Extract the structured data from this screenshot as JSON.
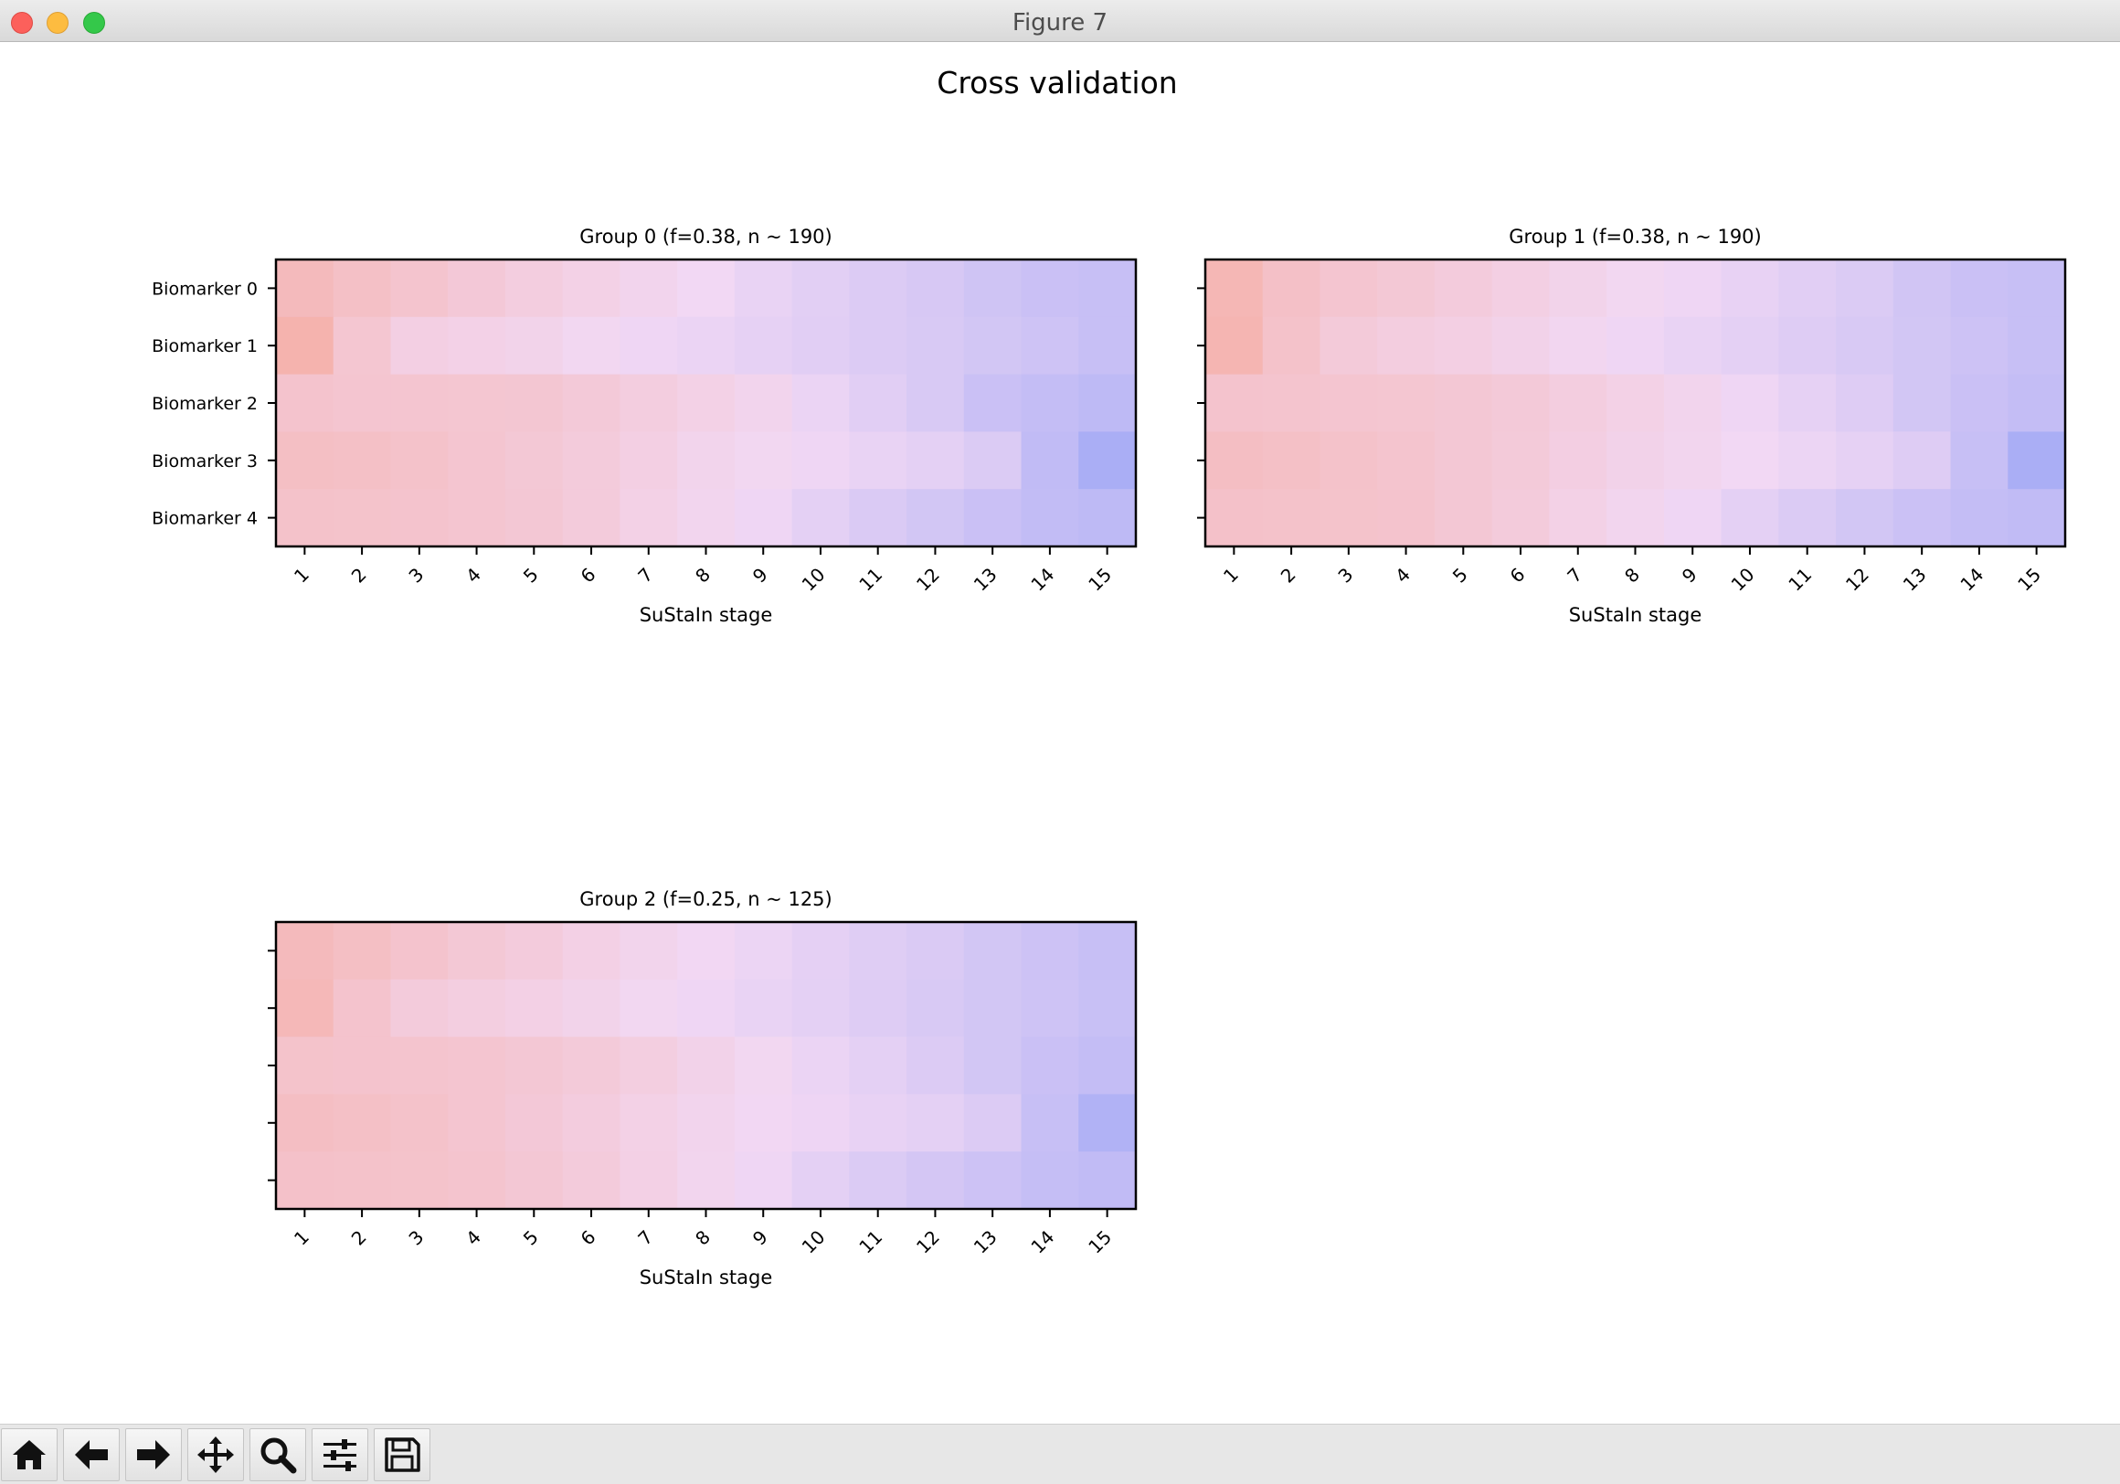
{
  "window": {
    "title": "Figure 7"
  },
  "figure": {
    "suptitle": "Cross validation"
  },
  "toolbar": {
    "buttons": [
      {
        "name": "home",
        "icon": "home-icon"
      },
      {
        "name": "back",
        "icon": "arrow-left-icon"
      },
      {
        "name": "forward",
        "icon": "arrow-right-icon"
      },
      {
        "name": "pan",
        "icon": "move-arrows-icon"
      },
      {
        "name": "zoom",
        "icon": "magnifier-icon"
      },
      {
        "name": "configure-subplots",
        "icon": "sliders-icon"
      },
      {
        "name": "save",
        "icon": "floppy-disk-icon"
      }
    ]
  },
  "colors": {
    "low": "#f5b3ae",
    "mid": "#f2d8f4",
    "high": "#aaaef5",
    "titlebar": "#e3e3e3",
    "toolbar": "#e7e7e7"
  },
  "chart_data": [
    {
      "type": "heatmap",
      "title": "Group 0 (f=0.38, n ~ 190)",
      "xlabel": "SuStaIn stage",
      "x_ticklabels": [
        "1",
        "2",
        "3",
        "4",
        "5",
        "6",
        "7",
        "8",
        "9",
        "10",
        "11",
        "12",
        "13",
        "14",
        "15"
      ],
      "y_ticklabels": [
        "Biomarker 0",
        "Biomarker 1",
        "Biomarker 2",
        "Biomarker 3",
        "Biomarker 4"
      ],
      "value_description": "relative intensity: 0 = red, 0.5 = pink, 1 = blue",
      "values": [
        [
          0.1,
          0.17,
          0.23,
          0.29,
          0.35,
          0.4,
          0.45,
          0.5,
          0.56,
          0.61,
          0.65,
          0.69,
          0.74,
          0.78,
          0.8
        ],
        [
          0.0,
          0.25,
          0.38,
          0.41,
          0.43,
          0.48,
          0.52,
          0.55,
          0.58,
          0.62,
          0.65,
          0.68,
          0.72,
          0.75,
          0.8
        ],
        [
          0.22,
          0.24,
          0.24,
          0.25,
          0.26,
          0.3,
          0.35,
          0.4,
          0.45,
          0.55,
          0.62,
          0.68,
          0.78,
          0.82,
          0.86
        ],
        [
          0.16,
          0.17,
          0.2,
          0.24,
          0.28,
          0.32,
          0.38,
          0.44,
          0.48,
          0.52,
          0.56,
          0.6,
          0.66,
          0.84,
          1.0
        ],
        [
          0.2,
          0.21,
          0.22,
          0.24,
          0.27,
          0.32,
          0.4,
          0.46,
          0.52,
          0.6,
          0.67,
          0.72,
          0.78,
          0.83,
          0.86
        ]
      ]
    },
    {
      "type": "heatmap",
      "title": "Group 1 (f=0.38, n ~ 190)",
      "xlabel": "SuStaIn stage",
      "x_ticklabels": [
        "1",
        "2",
        "3",
        "4",
        "5",
        "6",
        "7",
        "8",
        "9",
        "10",
        "11",
        "12",
        "13",
        "14",
        "15"
      ],
      "y_ticklabels": [],
      "value_description": "relative intensity: 0 = red, 0.5 = pink, 1 = blue",
      "values": [
        [
          0.05,
          0.18,
          0.24,
          0.28,
          0.33,
          0.38,
          0.43,
          0.48,
          0.52,
          0.57,
          0.62,
          0.66,
          0.73,
          0.78,
          0.8
        ],
        [
          0.03,
          0.2,
          0.31,
          0.35,
          0.38,
          0.42,
          0.47,
          0.52,
          0.56,
          0.6,
          0.64,
          0.68,
          0.72,
          0.76,
          0.8
        ],
        [
          0.22,
          0.23,
          0.24,
          0.25,
          0.27,
          0.3,
          0.35,
          0.4,
          0.45,
          0.52,
          0.58,
          0.64,
          0.72,
          0.78,
          0.82
        ],
        [
          0.15,
          0.17,
          0.2,
          0.23,
          0.27,
          0.31,
          0.37,
          0.42,
          0.46,
          0.5,
          0.54,
          0.58,
          0.64,
          0.8,
          1.0
        ],
        [
          0.19,
          0.2,
          0.21,
          0.22,
          0.27,
          0.32,
          0.4,
          0.46,
          0.52,
          0.6,
          0.66,
          0.72,
          0.77,
          0.82,
          0.84
        ]
      ]
    },
    {
      "type": "heatmap",
      "title": "Group 2 (f=0.25, n ~ 125)",
      "xlabel": "SuStaIn stage",
      "x_ticklabels": [
        "1",
        "2",
        "3",
        "4",
        "5",
        "6",
        "7",
        "8",
        "9",
        "10",
        "11",
        "12",
        "13",
        "14",
        "15"
      ],
      "y_ticklabels": [],
      "value_description": "relative intensity: 0 = red, 0.5 = pink, 1 = blue",
      "values": [
        [
          0.1,
          0.16,
          0.22,
          0.28,
          0.33,
          0.39,
          0.44,
          0.49,
          0.54,
          0.59,
          0.63,
          0.67,
          0.72,
          0.76,
          0.8
        ],
        [
          0.07,
          0.22,
          0.32,
          0.36,
          0.39,
          0.43,
          0.48,
          0.52,
          0.56,
          0.6,
          0.64,
          0.68,
          0.72,
          0.75,
          0.79
        ],
        [
          0.21,
          0.22,
          0.23,
          0.24,
          0.27,
          0.31,
          0.36,
          0.42,
          0.48,
          0.55,
          0.6,
          0.65,
          0.72,
          0.78,
          0.82
        ],
        [
          0.15,
          0.17,
          0.2,
          0.24,
          0.29,
          0.34,
          0.4,
          0.45,
          0.49,
          0.53,
          0.57,
          0.6,
          0.65,
          0.8,
          0.95
        ],
        [
          0.19,
          0.2,
          0.21,
          0.23,
          0.27,
          0.32,
          0.39,
          0.46,
          0.52,
          0.6,
          0.66,
          0.71,
          0.76,
          0.81,
          0.84
        ]
      ]
    }
  ]
}
